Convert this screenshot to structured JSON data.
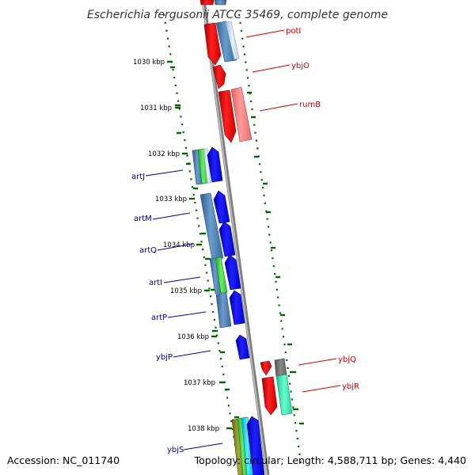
{
  "title": "Escherichia fergusonii ATCC 35469, complete genome",
  "footer": {
    "accession": "Accession: NC_011740",
    "topology": "Topology: circular; Length: 4,588,711 bp; Genes: 4,440"
  },
  "ruler": [
    {
      "label": "1030 kbp"
    },
    {
      "label": "1031 kbp"
    },
    {
      "label": "1032 kbp"
    },
    {
      "label": "1033 kbp"
    },
    {
      "label": "1034 kbp"
    },
    {
      "label": "1035 kbp"
    },
    {
      "label": "1036 kbp"
    },
    {
      "label": "1037 kbp"
    },
    {
      "label": "1038 kbp"
    }
  ],
  "genes_forward": [
    {
      "label": "potI",
      "color": "#ff0000"
    },
    {
      "label": "ybjO",
      "color": "#ff0000"
    },
    {
      "label": "rumB",
      "color": "#ff0000"
    },
    {
      "label": "ybjQ",
      "color": "#ff0000"
    },
    {
      "label": "ybjR",
      "color": "#ff0000"
    }
  ],
  "genes_reverse": [
    {
      "label": "artJ",
      "color": "#0000ff"
    },
    {
      "label": "artM",
      "color": "#0000ff"
    },
    {
      "label": "artQ",
      "color": "#0000ff"
    },
    {
      "label": "artI",
      "color": "#0000ff"
    },
    {
      "label": "artP",
      "color": "#0000ff"
    },
    {
      "label": "ybjP",
      "color": "#0000ff"
    },
    {
      "label": "ybjS",
      "color": "#0000ff"
    }
  ],
  "colors": {
    "forward_cds": "#ff0000",
    "reverse_cds": "#0000ff",
    "gc_dots": "#006600",
    "backbone": "#808080",
    "forward_label": "#cc0000",
    "reverse_label": "#000099"
  }
}
